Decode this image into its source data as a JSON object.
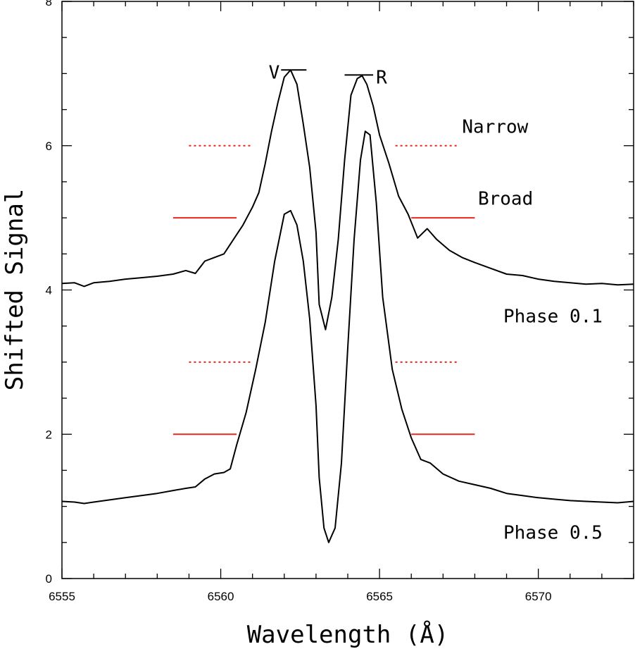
{
  "chart_data": {
    "type": "line",
    "xlabel": "Wavelength (Å)",
    "ylabel": "Shifted Signal",
    "xlim": [
      6555,
      6573
    ],
    "ylim": [
      0,
      8
    ],
    "x_ticks": [
      6555,
      6560,
      6565,
      6570
    ],
    "y_ticks": [
      0,
      2,
      4,
      6,
      8
    ],
    "x_minor_step": 1,
    "y_minor_step": 0.5,
    "series": [
      {
        "name": "Phase 0.1",
        "label": "Phase 0.1",
        "color": "#000000",
        "points": [
          [
            6555.0,
            4.09
          ],
          [
            6555.4,
            4.1
          ],
          [
            6555.7,
            4.05
          ],
          [
            6556.0,
            4.1
          ],
          [
            6556.5,
            4.12
          ],
          [
            6557.0,
            4.15
          ],
          [
            6557.5,
            4.17
          ],
          [
            6558.0,
            4.19
          ],
          [
            6558.5,
            4.22
          ],
          [
            6558.9,
            4.27
          ],
          [
            6559.2,
            4.23
          ],
          [
            6559.5,
            4.4
          ],
          [
            6559.8,
            4.45
          ],
          [
            6560.1,
            4.5
          ],
          [
            6560.4,
            4.7
          ],
          [
            6560.7,
            4.9
          ],
          [
            6561.0,
            5.15
          ],
          [
            6561.2,
            5.35
          ],
          [
            6561.4,
            5.75
          ],
          [
            6561.6,
            6.2
          ],
          [
            6561.8,
            6.6
          ],
          [
            6562.0,
            6.95
          ],
          [
            6562.2,
            7.05
          ],
          [
            6562.4,
            6.85
          ],
          [
            6562.6,
            6.3
          ],
          [
            6562.8,
            5.7
          ],
          [
            6563.0,
            4.8
          ],
          [
            6563.1,
            3.8
          ],
          [
            6563.3,
            3.45
          ],
          [
            6563.5,
            3.9
          ],
          [
            6563.7,
            4.7
          ],
          [
            6563.9,
            5.8
          ],
          [
            6564.1,
            6.7
          ],
          [
            6564.3,
            6.93
          ],
          [
            6564.45,
            6.97
          ],
          [
            6564.6,
            6.85
          ],
          [
            6564.8,
            6.55
          ],
          [
            6565.0,
            6.15
          ],
          [
            6565.3,
            5.75
          ],
          [
            6565.6,
            5.3
          ],
          [
            6565.9,
            5.05
          ],
          [
            6566.2,
            4.72
          ],
          [
            6566.5,
            4.85
          ],
          [
            6566.8,
            4.7
          ],
          [
            6567.2,
            4.55
          ],
          [
            6567.6,
            4.45
          ],
          [
            6568.0,
            4.38
          ],
          [
            6568.5,
            4.3
          ],
          [
            6569.0,
            4.22
          ],
          [
            6569.5,
            4.2
          ],
          [
            6570.0,
            4.15
          ],
          [
            6570.5,
            4.12
          ],
          [
            6571.0,
            4.1
          ],
          [
            6571.5,
            4.08
          ],
          [
            6572.0,
            4.09
          ],
          [
            6572.5,
            4.07
          ],
          [
            6573.0,
            4.08
          ]
        ]
      },
      {
        "name": "Phase 0.5",
        "label": "Phase 0.5",
        "color": "#000000",
        "points": [
          [
            6555.0,
            1.07
          ],
          [
            6555.4,
            1.06
          ],
          [
            6555.7,
            1.04
          ],
          [
            6556.0,
            1.06
          ],
          [
            6556.5,
            1.09
          ],
          [
            6557.0,
            1.12
          ],
          [
            6557.5,
            1.15
          ],
          [
            6558.0,
            1.18
          ],
          [
            6558.5,
            1.22
          ],
          [
            6558.9,
            1.25
          ],
          [
            6559.2,
            1.27
          ],
          [
            6559.5,
            1.38
          ],
          [
            6559.8,
            1.45
          ],
          [
            6560.1,
            1.47
          ],
          [
            6560.3,
            1.52
          ],
          [
            6560.5,
            1.85
          ],
          [
            6560.8,
            2.3
          ],
          [
            6561.1,
            2.9
          ],
          [
            6561.4,
            3.55
          ],
          [
            6561.7,
            4.4
          ],
          [
            6562.0,
            5.05
          ],
          [
            6562.2,
            5.1
          ],
          [
            6562.4,
            4.9
          ],
          [
            6562.6,
            4.4
          ],
          [
            6562.8,
            3.6
          ],
          [
            6563.0,
            2.4
          ],
          [
            6563.1,
            1.4
          ],
          [
            6563.25,
            0.7
          ],
          [
            6563.4,
            0.5
          ],
          [
            6563.6,
            0.7
          ],
          [
            6563.8,
            1.6
          ],
          [
            6564.0,
            3.2
          ],
          [
            6564.2,
            4.7
          ],
          [
            6564.4,
            5.8
          ],
          [
            6564.55,
            6.2
          ],
          [
            6564.7,
            6.15
          ],
          [
            6564.9,
            5.2
          ],
          [
            6565.1,
            3.9
          ],
          [
            6565.4,
            2.9
          ],
          [
            6565.7,
            2.35
          ],
          [
            6566.0,
            1.95
          ],
          [
            6566.3,
            1.65
          ],
          [
            6566.6,
            1.6
          ],
          [
            6567.0,
            1.45
          ],
          [
            6567.5,
            1.35
          ],
          [
            6568.0,
            1.3
          ],
          [
            6568.5,
            1.25
          ],
          [
            6569.0,
            1.18
          ],
          [
            6569.5,
            1.15
          ],
          [
            6570.0,
            1.12
          ],
          [
            6570.5,
            1.1
          ],
          [
            6571.0,
            1.08
          ],
          [
            6571.5,
            1.07
          ],
          [
            6572.0,
            1.06
          ],
          [
            6572.5,
            1.05
          ],
          [
            6573.0,
            1.07
          ]
        ]
      }
    ],
    "reference_lines": [
      {
        "name": "narrow-upper-left",
        "style": "dotted",
        "color": "#e8281e",
        "x": [
          6559.0,
          6561.0
        ],
        "y": 6.0
      },
      {
        "name": "narrow-upper-right",
        "style": "dotted",
        "color": "#e8281e",
        "x": [
          6565.5,
          6567.5
        ],
        "y": 6.0
      },
      {
        "name": "broad-upper-left",
        "style": "solid",
        "color": "#e8281e",
        "x": [
          6558.5,
          6560.5
        ],
        "y": 5.0
      },
      {
        "name": "broad-upper-right",
        "style": "solid",
        "color": "#e8281e",
        "x": [
          6566.0,
          6568.0
        ],
        "y": 5.0
      },
      {
        "name": "narrow-lower-left",
        "style": "dotted",
        "color": "#e8281e",
        "x": [
          6559.0,
          6561.0
        ],
        "y": 3.0
      },
      {
        "name": "narrow-lower-right",
        "style": "dotted",
        "color": "#e8281e",
        "x": [
          6565.5,
          6567.5
        ],
        "y": 3.0
      },
      {
        "name": "broad-lower-left",
        "style": "solid",
        "color": "#e8281e",
        "x": [
          6558.5,
          6560.5
        ],
        "y": 2.0
      },
      {
        "name": "broad-lower-right",
        "style": "solid",
        "color": "#e8281e",
        "x": [
          6566.0,
          6568.0
        ],
        "y": 2.0
      }
    ],
    "peak_markers": [
      {
        "label": "V",
        "x": [
          6561.9,
          6562.7
        ],
        "y": 7.05
      },
      {
        "label": "R",
        "x": [
          6563.9,
          6564.8
        ],
        "y": 6.98
      }
    ],
    "annotations": [
      {
        "name": "narrow",
        "text": "Narrow",
        "x": 6567.6,
        "y": 6.18
      },
      {
        "name": "broad",
        "text": "Broad",
        "x": 6568.1,
        "y": 5.18
      },
      {
        "name": "phase-0-1",
        "text": "Phase 0.1",
        "x": 6568.9,
        "y": 3.55
      },
      {
        "name": "phase-0-5",
        "text": "Phase 0.5",
        "x": 6568.9,
        "y": 0.55
      }
    ]
  }
}
